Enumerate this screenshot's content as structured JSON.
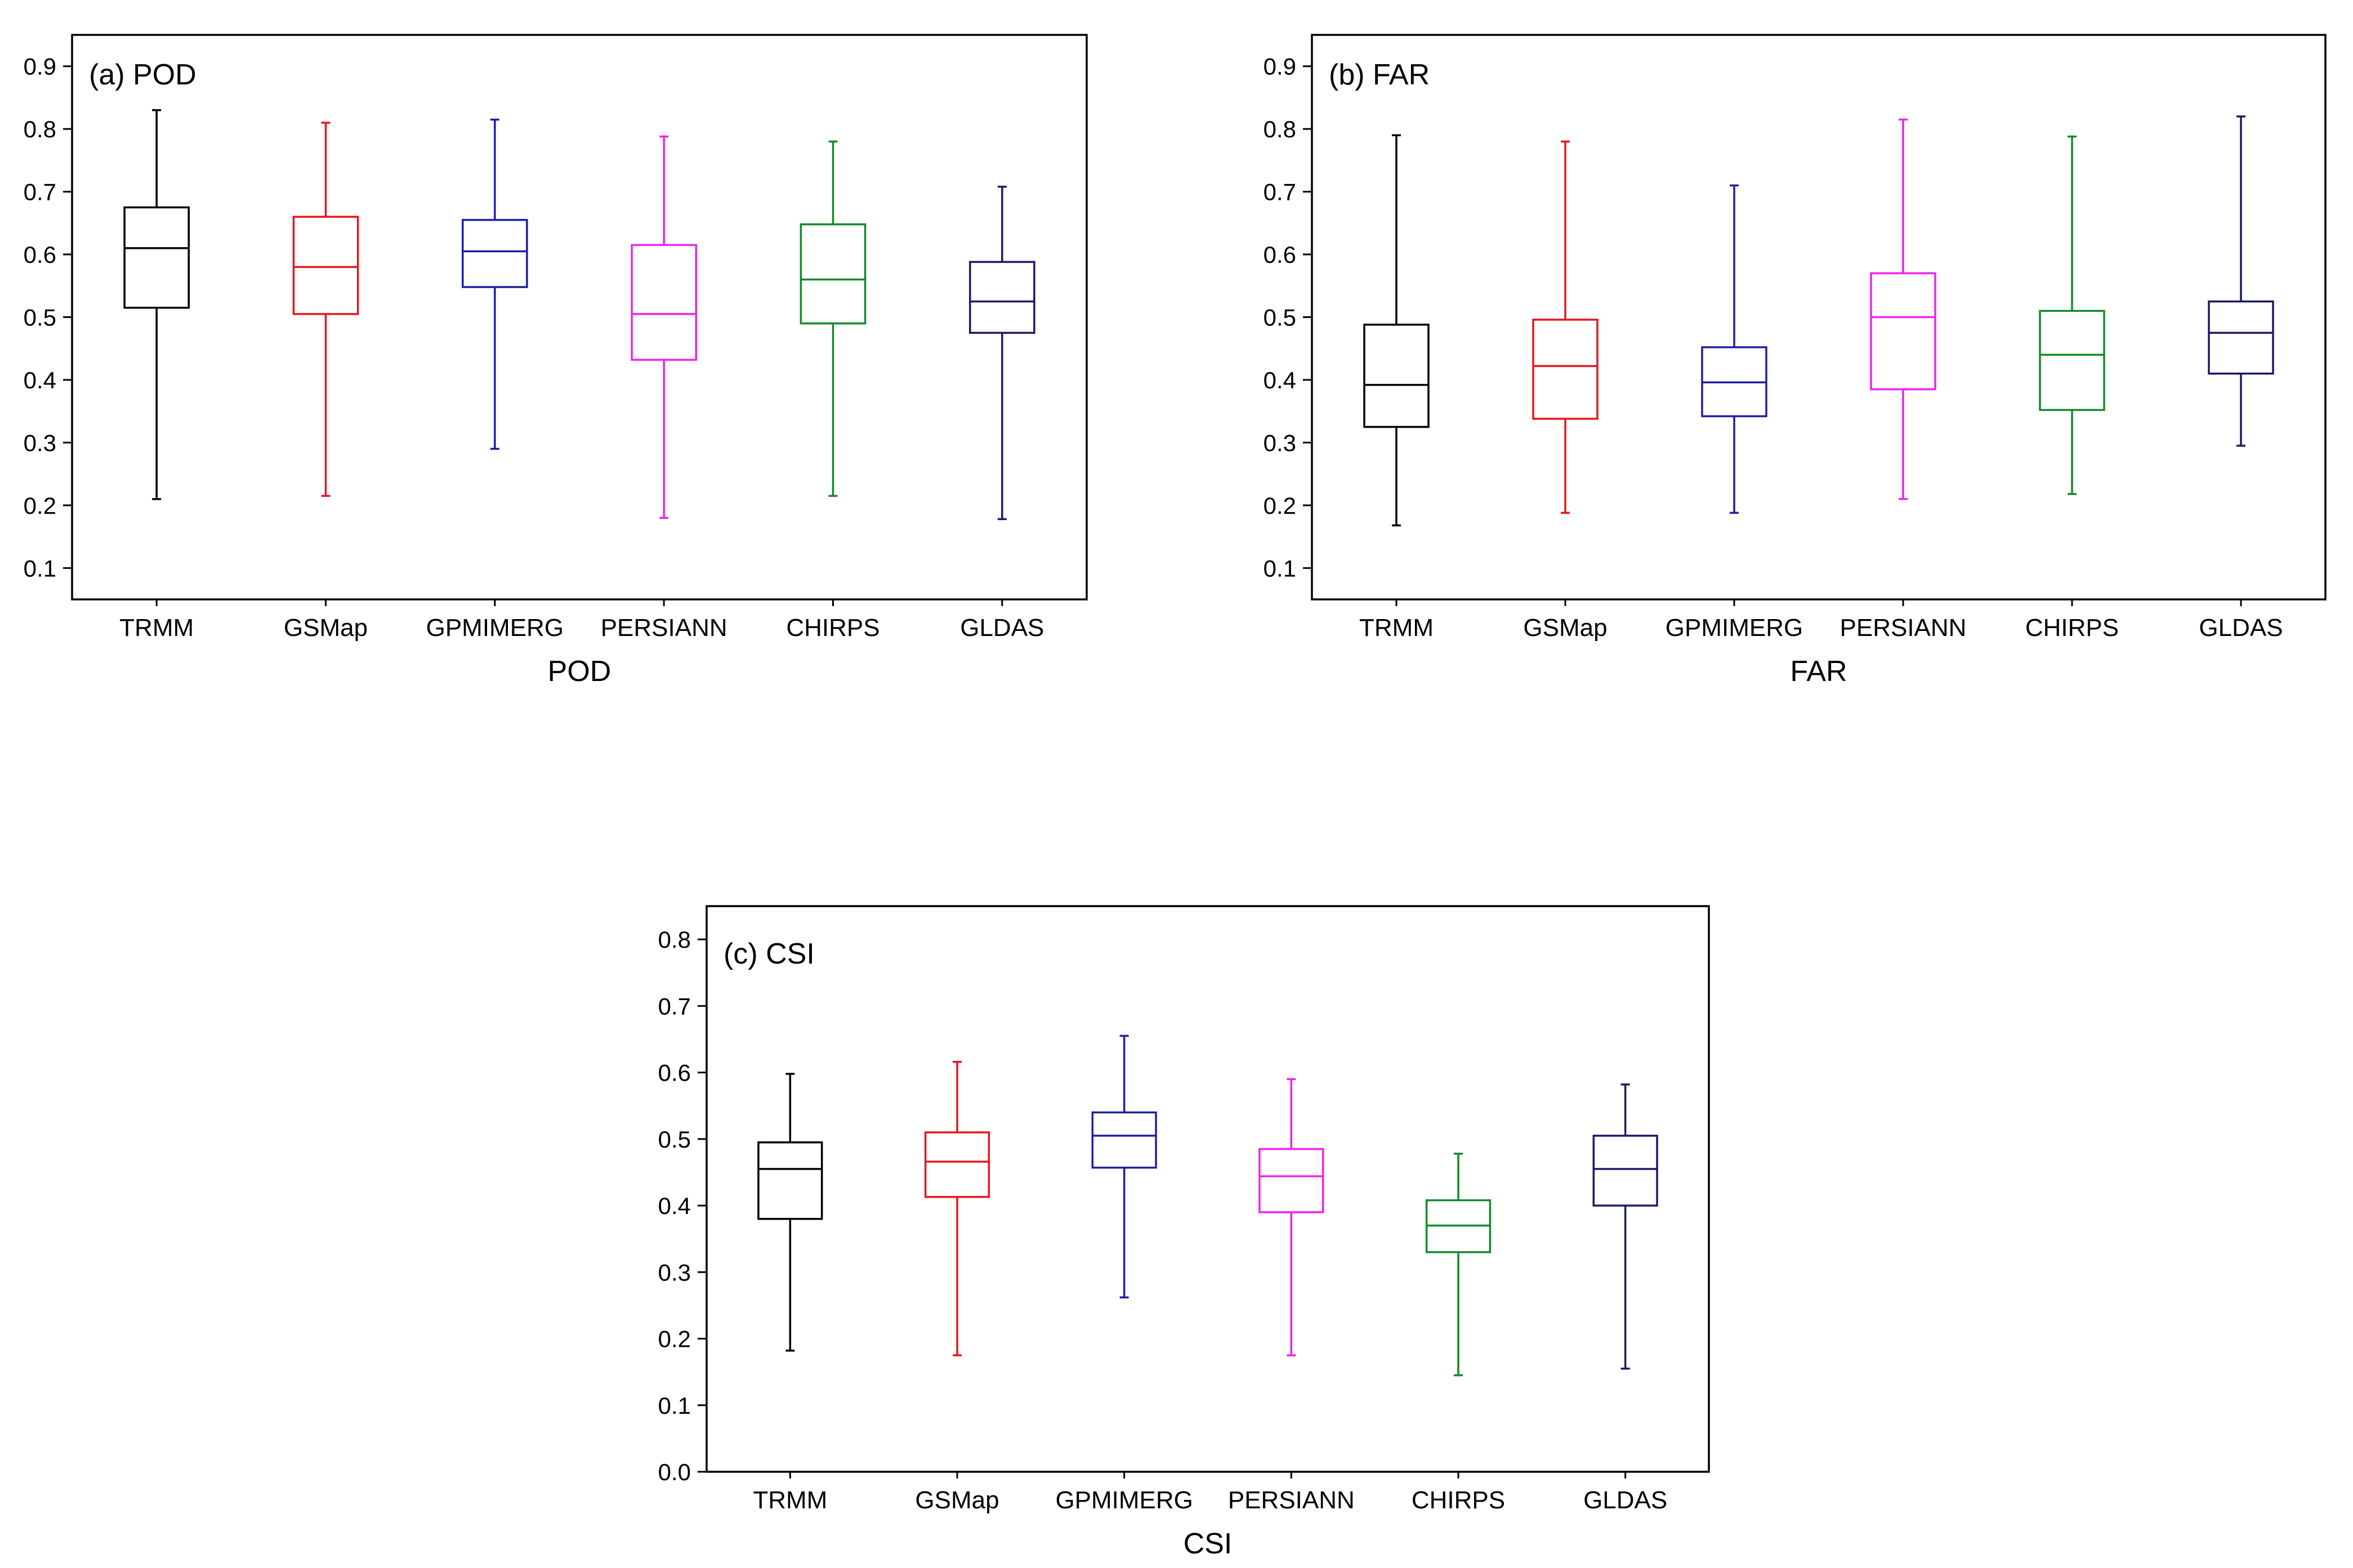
{
  "colors": {
    "TRMM": "#000000",
    "GSMap": "#e8141c",
    "GPMIMERG": "#1f1fa0",
    "PERSIANN": "#ee22ee",
    "CHIRPS": "#138a2c",
    "GLDAS": "#1a1a66"
  },
  "chart_data": [
    {
      "type": "box",
      "id": "pod",
      "panel_label": "(a) POD",
      "xlabel": "POD",
      "ylabel": "",
      "ylim": [
        0.05,
        0.95
      ],
      "yticks": [
        0.1,
        0.2,
        0.3,
        0.4,
        0.5,
        0.6,
        0.7,
        0.8,
        0.9
      ],
      "ytick_labels": [
        "0.1",
        "0.2",
        "0.3",
        "0.4",
        "0.5",
        "0.6",
        "0.7",
        "0.8",
        "0.9"
      ],
      "grid": false,
      "categories": [
        "TRMM",
        "GSMap",
        "GPMIMERG",
        "PERSIANN",
        "CHIRPS",
        "GLDAS"
      ],
      "boxes": [
        {
          "name": "TRMM",
          "min": 0.21,
          "q1": 0.515,
          "median": 0.61,
          "q3": 0.675,
          "max": 0.83
        },
        {
          "name": "GSMap",
          "min": 0.215,
          "q1": 0.505,
          "median": 0.58,
          "q3": 0.66,
          "max": 0.81
        },
        {
          "name": "GPMIMERG",
          "min": 0.29,
          "q1": 0.548,
          "median": 0.605,
          "q3": 0.655,
          "max": 0.815
        },
        {
          "name": "PERSIANN",
          "min": 0.18,
          "q1": 0.432,
          "median": 0.505,
          "q3": 0.615,
          "max": 0.788
        },
        {
          "name": "CHIRPS",
          "min": 0.215,
          "q1": 0.49,
          "median": 0.56,
          "q3": 0.648,
          "max": 0.78
        },
        {
          "name": "GLDAS",
          "min": 0.178,
          "q1": 0.475,
          "median": 0.525,
          "q3": 0.588,
          "max": 0.708
        }
      ]
    },
    {
      "type": "box",
      "id": "far",
      "panel_label": "(b) FAR",
      "xlabel": "FAR",
      "ylabel": "",
      "ylim": [
        0.05,
        0.95
      ],
      "yticks": [
        0.1,
        0.2,
        0.3,
        0.4,
        0.5,
        0.6,
        0.7,
        0.8,
        0.9
      ],
      "ytick_labels": [
        "0.1",
        "0.2",
        "0.3",
        "0.4",
        "0.5",
        "0.6",
        "0.7",
        "0.8",
        "0.9"
      ],
      "grid": false,
      "categories": [
        "TRMM",
        "GSMap",
        "GPMIMERG",
        "PERSIANN",
        "CHIRPS",
        "GLDAS"
      ],
      "boxes": [
        {
          "name": "TRMM",
          "min": 0.168,
          "q1": 0.325,
          "median": 0.392,
          "q3": 0.488,
          "max": 0.79
        },
        {
          "name": "GSMap",
          "min": 0.188,
          "q1": 0.338,
          "median": 0.422,
          "q3": 0.496,
          "max": 0.78
        },
        {
          "name": "GPMIMERG",
          "min": 0.188,
          "q1": 0.342,
          "median": 0.396,
          "q3": 0.452,
          "max": 0.71
        },
        {
          "name": "PERSIANN",
          "min": 0.21,
          "q1": 0.385,
          "median": 0.5,
          "q3": 0.57,
          "max": 0.815
        },
        {
          "name": "CHIRPS",
          "min": 0.218,
          "q1": 0.352,
          "median": 0.44,
          "q3": 0.51,
          "max": 0.788
        },
        {
          "name": "GLDAS",
          "min": 0.295,
          "q1": 0.41,
          "median": 0.475,
          "q3": 0.525,
          "max": 0.82
        }
      ]
    },
    {
      "type": "box",
      "id": "csi",
      "panel_label": "(c) CSI",
      "xlabel": "CSI",
      "ylabel": "",
      "ylim": [
        0.0,
        0.85
      ],
      "yticks": [
        0.0,
        0.1,
        0.2,
        0.3,
        0.4,
        0.5,
        0.6,
        0.7,
        0.8
      ],
      "ytick_labels": [
        "0.0",
        "0.1",
        "0.2",
        "0.3",
        "0.4",
        "0.5",
        "0.6",
        "0.7",
        "0.8"
      ],
      "grid": false,
      "categories": [
        "TRMM",
        "GSMap",
        "GPMIMERG",
        "PERSIANN",
        "CHIRPS",
        "GLDAS"
      ],
      "boxes": [
        {
          "name": "TRMM",
          "min": 0.182,
          "q1": 0.38,
          "median": 0.455,
          "q3": 0.495,
          "max": 0.598
        },
        {
          "name": "GSMap",
          "min": 0.175,
          "q1": 0.413,
          "median": 0.466,
          "q3": 0.51,
          "max": 0.616
        },
        {
          "name": "GPMIMERG",
          "min": 0.262,
          "q1": 0.457,
          "median": 0.505,
          "q3": 0.54,
          "max": 0.655
        },
        {
          "name": "PERSIANN",
          "min": 0.175,
          "q1": 0.39,
          "median": 0.444,
          "q3": 0.485,
          "max": 0.59
        },
        {
          "name": "CHIRPS",
          "min": 0.145,
          "q1": 0.33,
          "median": 0.37,
          "q3": 0.408,
          "max": 0.478
        },
        {
          "name": "GLDAS",
          "min": 0.155,
          "q1": 0.4,
          "median": 0.455,
          "q3": 0.505,
          "max": 0.582
        }
      ]
    }
  ]
}
